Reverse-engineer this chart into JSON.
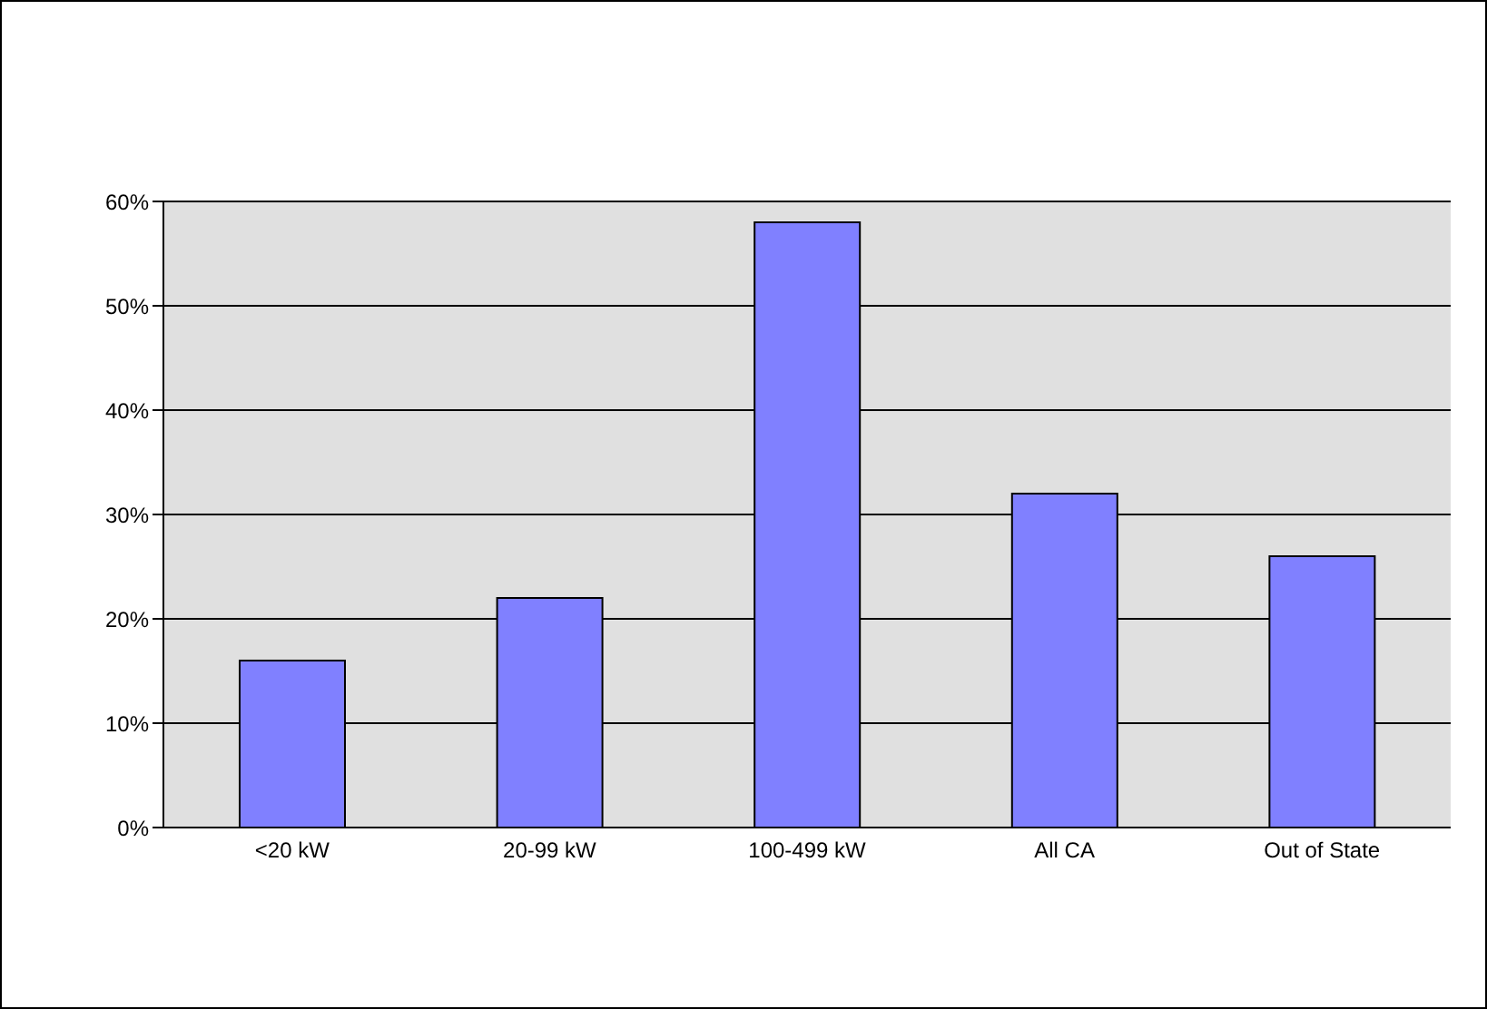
{
  "chart_data": {
    "type": "bar",
    "categories": [
      "<20 kW",
      "20-99 kW",
      "100-499 kW",
      "All CA",
      "Out of State"
    ],
    "values": [
      16,
      22,
      58,
      32,
      26
    ],
    "color": "#8080ff",
    "ylim": [
      0,
      60
    ],
    "yticks": [
      {
        "value": 0,
        "label": "0%"
      },
      {
        "value": 10,
        "label": "10%"
      },
      {
        "value": 20,
        "label": "20%"
      },
      {
        "value": 30,
        "label": "30%"
      },
      {
        "value": 40,
        "label": "40%"
      },
      {
        "value": 50,
        "label": "50%"
      },
      {
        "value": 60,
        "label": "60%"
      }
    ],
    "grid": "y"
  }
}
